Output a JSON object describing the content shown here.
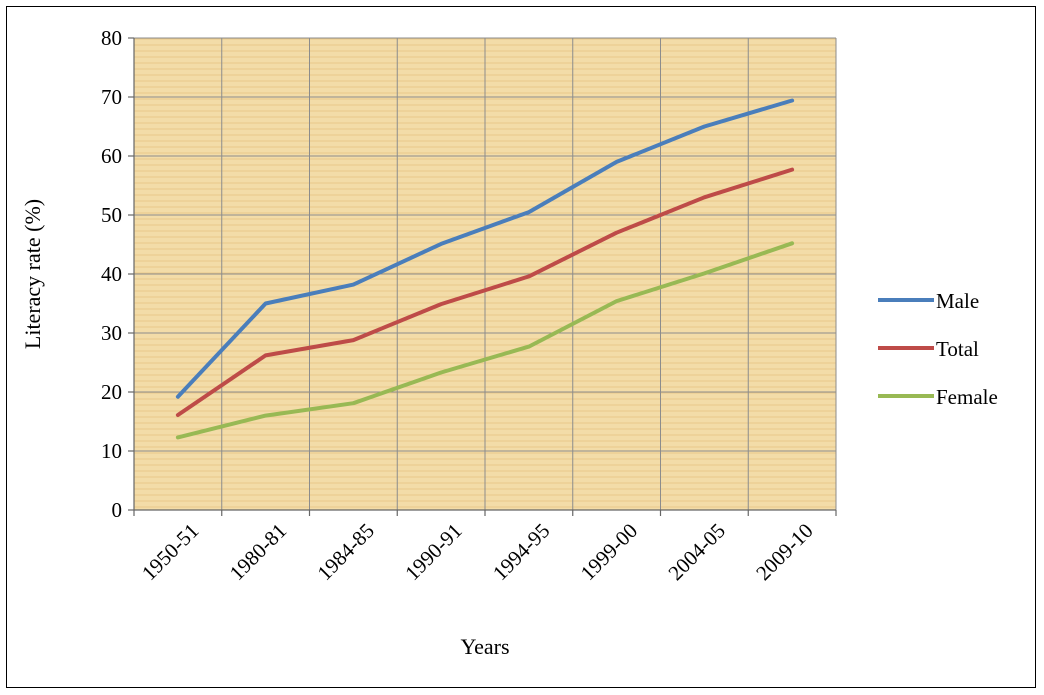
{
  "chart_data": {
    "type": "line",
    "title": "",
    "xlabel": "Years",
    "ylabel": "Literacy rate (%)",
    "ylim": [
      0,
      80
    ],
    "yticks": [
      0,
      10,
      20,
      30,
      40,
      50,
      60,
      70,
      80
    ],
    "categories": [
      "1950-51",
      "1980-81",
      "1984-85",
      "1990-91",
      "1994-95",
      "1999-00",
      "2004-05",
      "2009-10"
    ],
    "series": [
      {
        "name": "Male",
        "color": "#4a7ebb",
        "values": [
          19.2,
          35,
          38.2,
          45.1,
          50.5,
          59,
          65,
          69.4
        ]
      },
      {
        "name": "Total",
        "color": "#be4b48",
        "values": [
          16.1,
          26.2,
          28.8,
          34.9,
          39.6,
          47,
          53,
          57.7
        ]
      },
      {
        "name": "Female",
        "color": "#98b954",
        "values": [
          12.3,
          16,
          18.1,
          23.3,
          27.7,
          35.4,
          40.1,
          45.2
        ]
      }
    ],
    "grid": true,
    "legend_position": "right",
    "plot_background": "#f3dca8"
  }
}
